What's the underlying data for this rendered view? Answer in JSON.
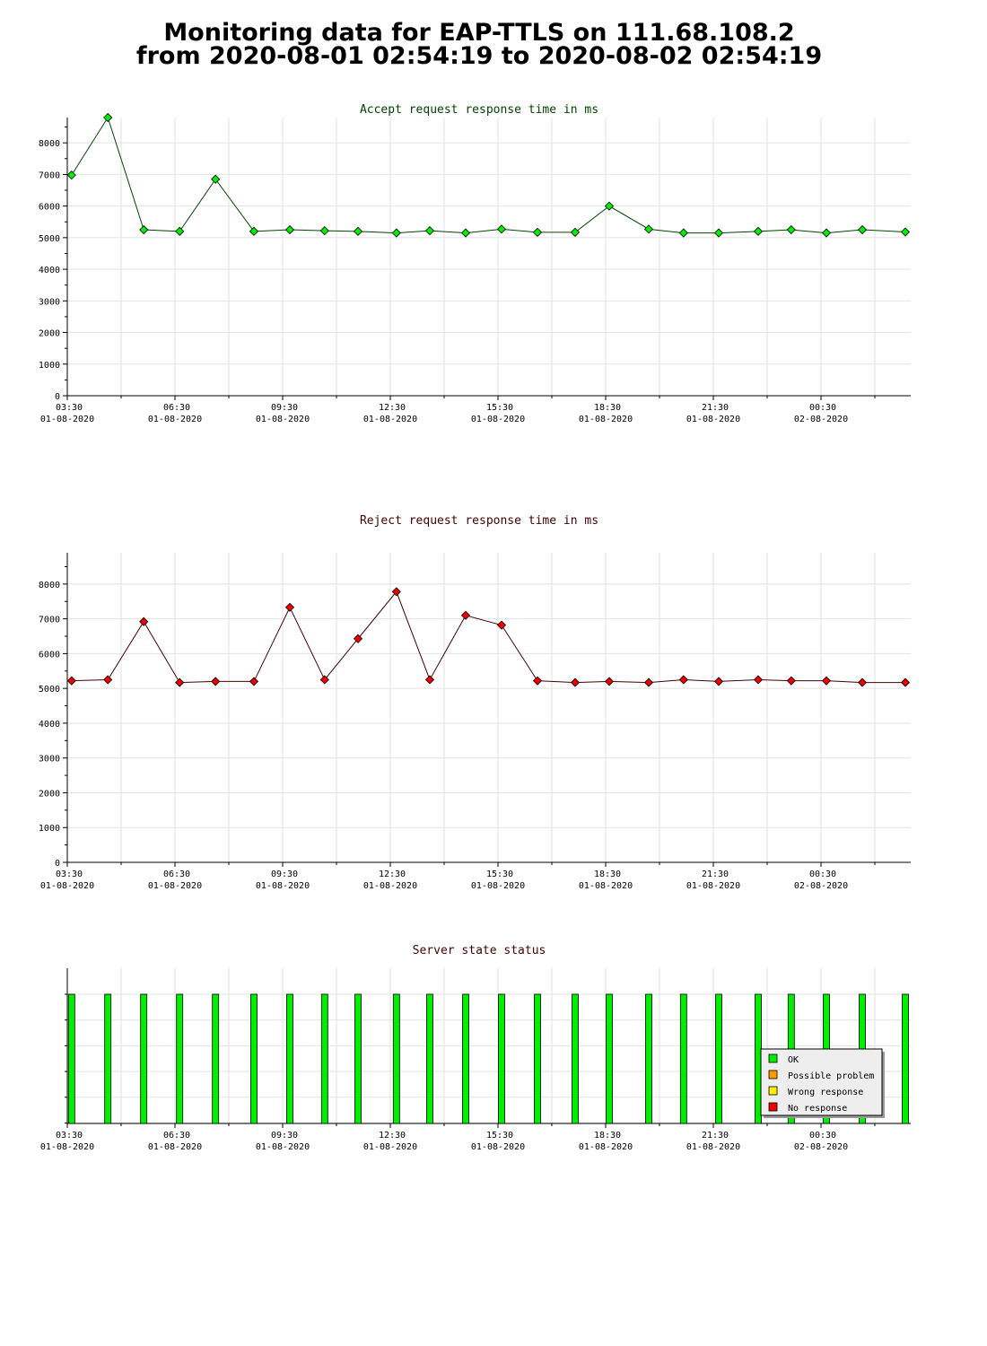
{
  "page": {
    "title_line1": "Monitoring data for EAP-TTLS on 111.68.108.2",
    "title_line2": "from 2020-08-01 02:54:19 to 2020-08-02 02:54:19"
  },
  "x_axis": {
    "ticks": [
      {
        "time": "03:30",
        "date": "01-08-2020",
        "hours": 0
      },
      {
        "time": "06:30",
        "date": "01-08-2020",
        "hours": 3
      },
      {
        "time": "09:30",
        "date": "01-08-2020",
        "hours": 6
      },
      {
        "time": "12:30",
        "date": "01-08-2020",
        "hours": 9
      },
      {
        "time": "15:30",
        "date": "01-08-2020",
        "hours": 12
      },
      {
        "time": "18:30",
        "date": "01-08-2020",
        "hours": 15
      },
      {
        "time": "21:30",
        "date": "01-08-2020",
        "hours": 18
      },
      {
        "time": "00:30",
        "date": "02-08-2020",
        "hours": 21
      }
    ]
  },
  "chart_data": [
    {
      "type": "line",
      "title": "Accept request response time in ms",
      "title_color": "#004400",
      "line_color": "#004400",
      "marker_color": "#00ee00",
      "x_unit": "hours since 01-08-2020 03:30",
      "ylim": [
        0,
        8800
      ],
      "yticks": [
        0,
        1000,
        2000,
        3000,
        4000,
        5000,
        6000,
        7000,
        8000
      ],
      "grid": true,
      "x": [
        0.12,
        1.13,
        2.13,
        3.13,
        4.13,
        5.2,
        6.2,
        7.17,
        8.1,
        9.17,
        10.1,
        11.1,
        12.1,
        13.1,
        14.15,
        15.1,
        16.2,
        17.17,
        18.15,
        19.25,
        20.17,
        21.15,
        22.15,
        23.35
      ],
      "values": [
        6980,
        8800,
        5250,
        5200,
        6850,
        5200,
        5250,
        5220,
        5200,
        5150,
        5220,
        5150,
        5270,
        5170,
        5170,
        6000,
        5270,
        5150,
        5150,
        5200,
        5250,
        5150,
        5250,
        5180
      ]
    },
    {
      "type": "line",
      "title": "Reject request response time in ms",
      "title_color": "#440000",
      "line_color": "#440000",
      "marker_color": "#ee0000",
      "x_unit": "hours since 01-08-2020 03:30",
      "ylim": [
        0,
        8900
      ],
      "yticks": [
        0,
        1000,
        2000,
        3000,
        4000,
        5000,
        6000,
        7000,
        8000
      ],
      "grid": true,
      "x": [
        0.12,
        1.13,
        2.13,
        3.13,
        4.13,
        5.2,
        6.2,
        7.17,
        8.1,
        9.17,
        10.1,
        11.1,
        12.1,
        13.1,
        14.15,
        15.1,
        16.2,
        17.17,
        18.15,
        19.25,
        20.17,
        21.15,
        22.15,
        23.35
      ],
      "values": [
        5220,
        5250,
        6920,
        5170,
        5200,
        5200,
        7330,
        5250,
        6430,
        7780,
        5250,
        7100,
        6820,
        5220,
        5170,
        5200,
        5170,
        5250,
        5200,
        5250,
        5220,
        5220,
        5170,
        5170
      ]
    },
    {
      "type": "bar",
      "title": "Server state status",
      "title_color": "#440000",
      "x_unit": "hours since 01-08-2020 03:30",
      "x": [
        0.12,
        1.13,
        2.13,
        3.13,
        4.13,
        5.2,
        6.2,
        7.17,
        8.1,
        9.17,
        10.1,
        11.1,
        12.1,
        13.1,
        14.15,
        15.1,
        16.2,
        17.17,
        18.15,
        19.25,
        20.17,
        21.15,
        22.15,
        23.35
      ],
      "states": [
        "OK",
        "OK",
        "OK",
        "OK",
        "OK",
        "OK",
        "OK",
        "OK",
        "OK",
        "OK",
        "OK",
        "OK",
        "OK",
        "OK",
        "OK",
        "OK",
        "OK",
        "OK",
        "OK",
        "OK",
        "OK",
        "OK",
        "OK",
        "OK"
      ],
      "grid": true,
      "legend_placement": "bottom-right",
      "legend": [
        {
          "label": "OK",
          "color": "#00ee00"
        },
        {
          "label": "Possible problem",
          "color": "#ff9900"
        },
        {
          "label": "Wrong response",
          "color": "#ffee00"
        },
        {
          "label": "No response",
          "color": "#ee0000"
        }
      ]
    }
  ]
}
